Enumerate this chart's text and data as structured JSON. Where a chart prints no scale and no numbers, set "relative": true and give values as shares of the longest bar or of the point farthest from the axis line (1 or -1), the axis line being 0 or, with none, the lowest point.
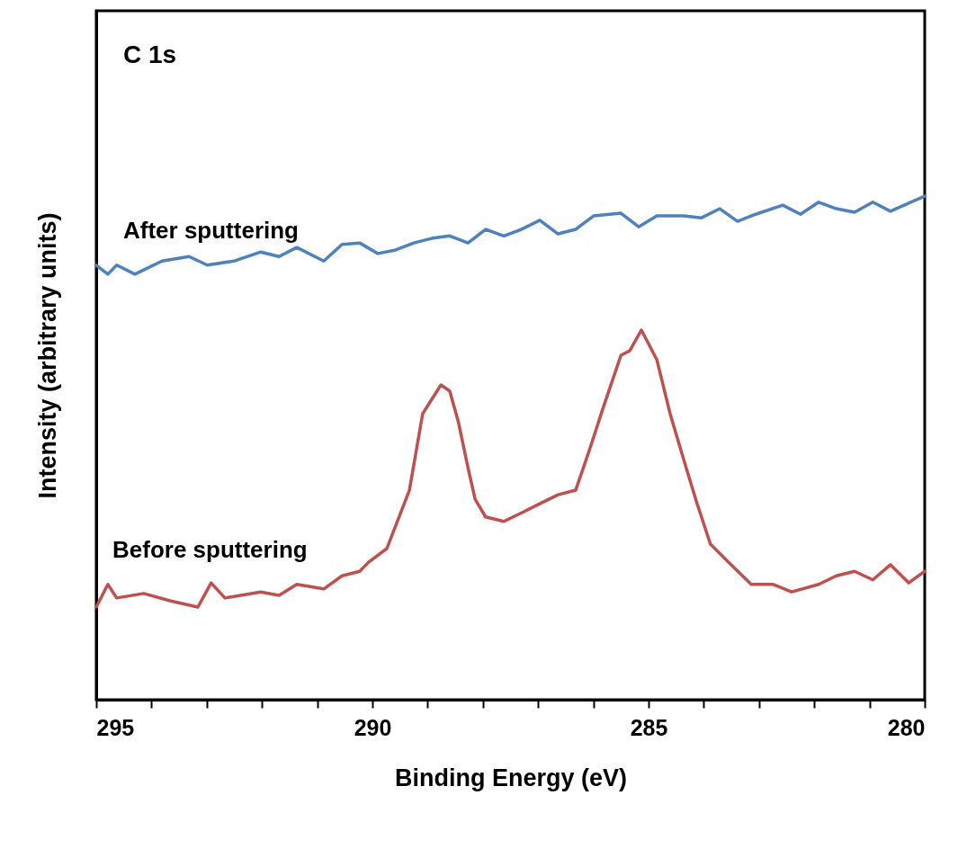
{
  "chart_data": {
    "type": "line",
    "relative": true,
    "xlabel": "Binding Energy (eV)",
    "ylabel": "Intensity (arbitrary units)",
    "annotations": [
      "C 1s"
    ],
    "xlim": [
      295,
      280
    ],
    "xticks": [
      295,
      {
        "value": 294,
        "label": null
      },
      {
        "value": 293,
        "label": null
      },
      {
        "value": 292,
        "label": null
      },
      {
        "value": 291,
        "label": null
      },
      290,
      {
        "value": 289,
        "label": null
      },
      {
        "value": 288,
        "label": null
      },
      {
        "value": 287,
        "label": null
      },
      {
        "value": 286,
        "label": null
      },
      285,
      {
        "value": 284,
        "label": null
      },
      {
        "value": 283,
        "label": null
      },
      {
        "value": 282,
        "label": null
      },
      {
        "value": 281,
        "label": null
      },
      280
    ],
    "grid": false,
    "marker": "none",
    "line_style": "solid",
    "series": [
      {
        "name": "After sputtering",
        "color": "#4f81bd",
        "x": [
          295.0,
          294.79,
          294.63,
          294.3,
          293.81,
          293.32,
          292.99,
          292.51,
          292.02,
          291.69,
          291.37,
          290.88,
          290.55,
          290.23,
          289.9,
          289.58,
          289.25,
          288.93,
          288.6,
          288.27,
          287.95,
          287.62,
          287.3,
          286.97,
          286.64,
          286.32,
          285.99,
          285.5,
          285.18,
          284.85,
          284.37,
          284.04,
          283.71,
          283.39,
          283.06,
          282.57,
          282.25,
          281.92,
          281.6,
          281.27,
          280.94,
          280.62,
          280.29,
          280.0
        ],
        "values": [
          0.863,
          0.845,
          0.863,
          0.845,
          0.871,
          0.88,
          0.863,
          0.871,
          0.889,
          0.88,
          0.898,
          0.871,
          0.904,
          0.907,
          0.886,
          0.893,
          0.907,
          0.916,
          0.921,
          0.907,
          0.934,
          0.921,
          0.934,
          0.952,
          0.925,
          0.934,
          0.961,
          0.966,
          0.939,
          0.961,
          0.961,
          0.957,
          0.975,
          0.95,
          0.964,
          0.982,
          0.964,
          0.988,
          0.975,
          0.968,
          0.988,
          0.97,
          0.986,
          1.0
        ]
      },
      {
        "name": "Before sputtering",
        "color": "#c0504d",
        "x": [
          295.0,
          294.79,
          294.63,
          294.14,
          293.65,
          293.16,
          292.92,
          292.67,
          292.02,
          291.69,
          291.37,
          290.88,
          290.55,
          290.23,
          290.07,
          289.74,
          289.33,
          289.09,
          288.76,
          288.6,
          288.44,
          288.27,
          288.14,
          287.95,
          287.62,
          287.3,
          286.97,
          286.64,
          286.32,
          286.07,
          285.83,
          285.5,
          285.34,
          285.13,
          284.85,
          284.61,
          284.37,
          284.12,
          283.88,
          283.55,
          283.14,
          282.74,
          282.41,
          281.92,
          281.6,
          281.27,
          280.94,
          280.62,
          280.29,
          280.0
        ],
        "values": [
          0.184,
          0.229,
          0.202,
          0.211,
          0.196,
          0.184,
          0.232,
          0.202,
          0.214,
          0.207,
          0.229,
          0.22,
          0.246,
          0.255,
          0.273,
          0.3,
          0.416,
          0.568,
          0.625,
          0.613,
          0.55,
          0.461,
          0.398,
          0.363,
          0.354,
          0.371,
          0.389,
          0.407,
          0.416,
          0.496,
          0.577,
          0.684,
          0.693,
          0.734,
          0.675,
          0.568,
          0.479,
          0.389,
          0.309,
          0.273,
          0.229,
          0.229,
          0.214,
          0.229,
          0.246,
          0.255,
          0.238,
          0.268,
          0.232,
          0.255
        ]
      }
    ]
  }
}
